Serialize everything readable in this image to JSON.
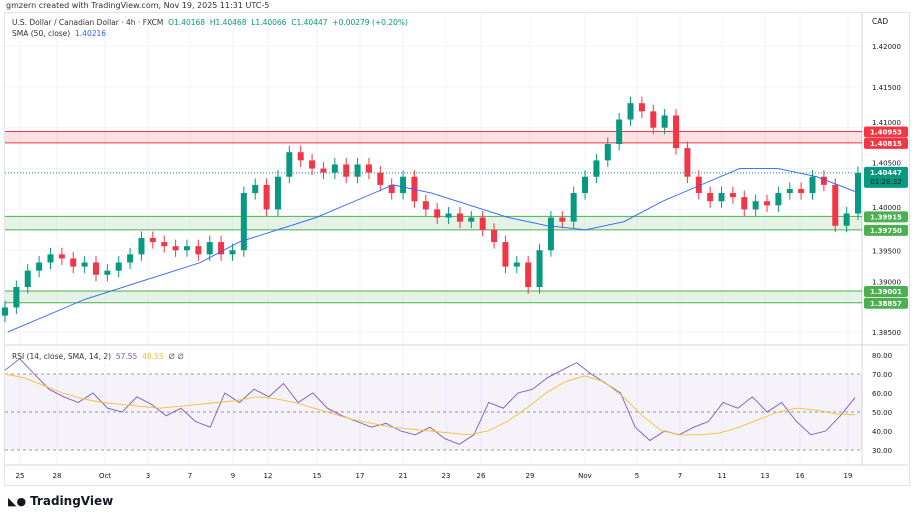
{
  "credit": "gmzern created with TradingView.com, Nov 19, 2025 11:31 UTC-5",
  "legend": {
    "symbol": "U.S. Dollar / Canadian Dollar · 4h · FXCM",
    "open": "O1.40168",
    "high": "H1.40468",
    "low": "L1.40066",
    "close": "C1.40447",
    "change": "+0.00279 (+0.20%)",
    "sma_label": "SMA (50, close)",
    "sma_value": "1.40216",
    "rsi_label": "RSI (14, close, SMA, 14, 2)",
    "rsi_value": "57.55",
    "rsi_sma_value": "48.55",
    "rsi_extra": "∅ ∅"
  },
  "currency": "CAD",
  "brand": "TradingView",
  "colors": {
    "up": "#089981",
    "down": "#f23645",
    "sma": "#2962ff",
    "rsi": "#7e57c2",
    "rsi_sma": "#f0c330",
    "resistance": "#f23645",
    "support": "#4caf50"
  },
  "chart_data": {
    "type": "candlestick",
    "x_ticks": [
      "25",
      "28",
      "Oct",
      "3",
      "7",
      "9",
      "12",
      "15",
      "17",
      "21",
      "23",
      "26",
      "29",
      "Nov",
      "5",
      "7",
      "11",
      "13",
      "16",
      "19"
    ],
    "y_ticks": [
      "1.42000",
      "1.41500",
      "1.41000",
      "1.40500",
      "1.40000",
      "1.39500",
      "1.39000",
      "1.38500"
    ],
    "ylim": [
      1.383,
      1.4215
    ],
    "closes": [
      1.388,
      1.3905,
      1.3925,
      1.3935,
      1.3945,
      1.394,
      1.393,
      1.3935,
      1.392,
      1.3925,
      1.3935,
      1.3945,
      1.3965,
      1.396,
      1.3955,
      1.395,
      1.3955,
      1.3945,
      1.396,
      1.3945,
      1.395,
      1.402,
      1.403,
      1.4,
      1.404,
      1.407,
      1.406,
      1.405,
      1.4045,
      1.4055,
      1.404,
      1.4055,
      1.4045,
      1.403,
      1.402,
      1.404,
      1.401,
      1.4,
      1.399,
      1.3995,
      1.3985,
      1.399,
      1.3975,
      1.396,
      1.393,
      1.3935,
      1.3905,
      1.395,
      1.399,
      1.3985,
      1.402,
      1.404,
      1.406,
      1.408,
      1.411,
      1.413,
      1.412,
      1.41,
      1.4115,
      1.4075,
      1.404,
      1.402,
      1.401,
      1.402,
      1.4015,
      1.4,
      1.401,
      1.4005,
      1.402,
      1.4025,
      1.402,
      1.404,
      1.403,
      1.398,
      1.3995,
      1.40447
    ],
    "sma": [
      1.385,
      1.387,
      1.389,
      1.3905,
      1.392,
      1.3935,
      1.396,
      1.3975,
      1.399,
      1.401,
      1.403,
      1.402,
      1.4005,
      1.399,
      1.398,
      1.3975,
      1.3985,
      1.401,
      1.403,
      1.405,
      1.405,
      1.404,
      1.4022
    ],
    "zones": [
      {
        "top": 1.40953,
        "bottom": 1.40815,
        "labels": [
          "1.40953",
          "1.40815"
        ],
        "kind": "resistance"
      },
      {
        "top": 1.39915,
        "bottom": 1.3975,
        "labels": [
          "1.39915",
          "1.39750"
        ],
        "kind": "support"
      },
      {
        "top": 1.39001,
        "bottom": 1.38857,
        "labels": [
          "1.39001",
          "1.38857"
        ],
        "kind": "support"
      }
    ],
    "last_price": "1.40447",
    "countdown": "01:28:32",
    "rsi": {
      "ylim": [
        25,
        82
      ],
      "y_ticks": [
        "80.00",
        "70.00",
        "60.00",
        "50.00",
        "40.00",
        "30.00"
      ],
      "bands": [
        30,
        70
      ],
      "values": [
        72,
        78,
        70,
        62,
        58,
        55,
        60,
        52,
        50,
        58,
        54,
        48,
        52,
        45,
        42,
        60,
        55,
        62,
        58,
        65,
        55,
        60,
        52,
        48,
        45,
        42,
        44,
        40,
        38,
        42,
        36,
        33,
        38,
        55,
        52,
        60,
        62,
        68,
        72,
        76,
        70,
        65,
        60,
        42,
        35,
        40,
        38,
        42,
        45,
        55,
        52,
        58,
        50,
        55,
        45,
        38,
        40,
        48,
        57.55
      ],
      "sma": [
        70,
        68,
        64,
        60,
        57,
        55,
        54,
        53,
        52,
        53,
        54,
        55,
        56,
        58,
        57,
        55,
        52,
        49,
        46,
        44,
        42,
        41,
        40,
        39,
        38,
        40,
        45,
        52,
        60,
        66,
        69,
        66,
        58,
        48,
        40,
        38,
        38,
        39,
        42,
        46,
        50,
        52,
        51,
        49,
        48.55
      ]
    }
  }
}
